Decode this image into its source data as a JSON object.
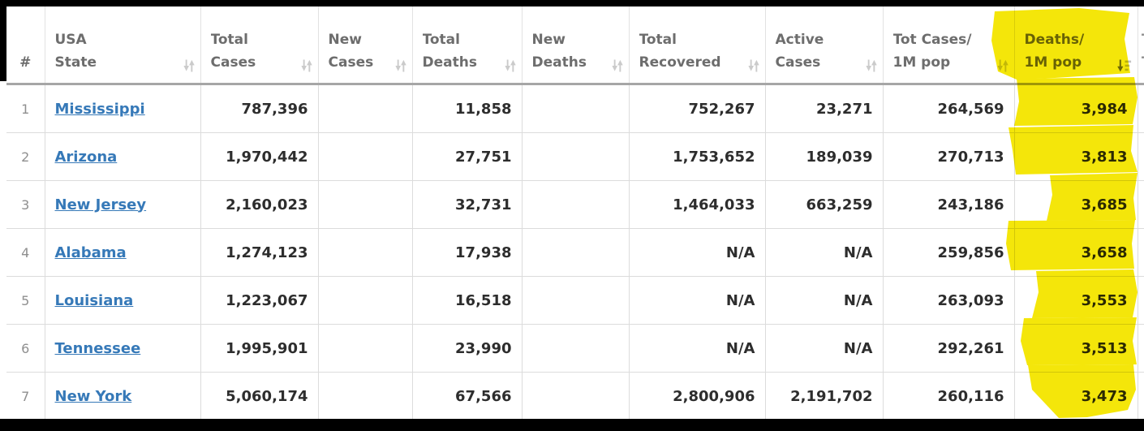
{
  "table": {
    "columns": [
      {
        "id": "rank",
        "line1": "",
        "line2": "#",
        "sort": "none",
        "align": "center",
        "sortable": false
      },
      {
        "id": "state",
        "line1": "USA",
        "line2": "State",
        "sort": "both",
        "align": "left",
        "sortable": true
      },
      {
        "id": "total_cases",
        "line1": "Total",
        "line2": "Cases",
        "sort": "both",
        "align": "right",
        "sortable": true
      },
      {
        "id": "new_cases",
        "line1": "New",
        "line2": "Cases",
        "sort": "both",
        "align": "right",
        "sortable": true
      },
      {
        "id": "total_deaths",
        "line1": "Total",
        "line2": "Deaths",
        "sort": "both",
        "align": "right",
        "sortable": true
      },
      {
        "id": "new_deaths",
        "line1": "New",
        "line2": "Deaths",
        "sort": "both",
        "align": "right",
        "sortable": true
      },
      {
        "id": "total_recovered",
        "line1": "Total",
        "line2": "Recovered",
        "sort": "both",
        "align": "right",
        "sortable": true
      },
      {
        "id": "active_cases",
        "line1": "Active",
        "line2": "Cases",
        "sort": "both",
        "align": "right",
        "sortable": true
      },
      {
        "id": "cases_per_1m",
        "line1": "Tot Cases/",
        "line2": "1M pop",
        "sort": "both",
        "align": "right",
        "sortable": true
      },
      {
        "id": "deaths_per_1m",
        "line1": "Deaths/",
        "line2": "1M pop",
        "sort": "desc-active",
        "align": "right",
        "sortable": true,
        "highlighted": true
      }
    ],
    "rows": [
      {
        "rank": "1",
        "state": "Mississippi",
        "total_cases": "787,396",
        "new_cases": "",
        "total_deaths": "11,858",
        "new_deaths": "",
        "total_recovered": "752,267",
        "active_cases": "23,271",
        "cases_per_1m": "264,569",
        "deaths_per_1m": "3,984"
      },
      {
        "rank": "2",
        "state": "Arizona",
        "total_cases": "1,970,442",
        "new_cases": "",
        "total_deaths": "27,751",
        "new_deaths": "",
        "total_recovered": "1,753,652",
        "active_cases": "189,039",
        "cases_per_1m": "270,713",
        "deaths_per_1m": "3,813"
      },
      {
        "rank": "3",
        "state": "New Jersey",
        "total_cases": "2,160,023",
        "new_cases": "",
        "total_deaths": "32,731",
        "new_deaths": "",
        "total_recovered": "1,464,033",
        "active_cases": "663,259",
        "cases_per_1m": "243,186",
        "deaths_per_1m": "3,685"
      },
      {
        "rank": "4",
        "state": "Alabama",
        "total_cases": "1,274,123",
        "new_cases": "",
        "total_deaths": "17,938",
        "new_deaths": "",
        "total_recovered": "N/A",
        "active_cases": "N/A",
        "cases_per_1m": "259,856",
        "deaths_per_1m": "3,658"
      },
      {
        "rank": "5",
        "state": "Louisiana",
        "total_cases": "1,223,067",
        "new_cases": "",
        "total_deaths": "16,518",
        "new_deaths": "",
        "total_recovered": "N/A",
        "active_cases": "N/A",
        "cases_per_1m": "263,093",
        "deaths_per_1m": "3,553"
      },
      {
        "rank": "6",
        "state": "Tennessee",
        "total_cases": "1,995,901",
        "new_cases": "",
        "total_deaths": "23,990",
        "new_deaths": "",
        "total_recovered": "N/A",
        "active_cases": "N/A",
        "cases_per_1m": "292,261",
        "deaths_per_1m": "3,513"
      },
      {
        "rank": "7",
        "state": "New York",
        "total_cases": "5,060,174",
        "new_cases": "",
        "total_deaths": "67,566",
        "new_deaths": "",
        "total_recovered": "2,800,906",
        "active_cases": "2,191,702",
        "cases_per_1m": "260,116",
        "deaths_per_1m": "3,473"
      }
    ],
    "sorted_column": "deaths_per_1m",
    "sort_direction": "descending",
    "next_column_fragment_line1": "T",
    "next_column_fragment_line2": "T"
  },
  "highlight": {
    "style": "hand-drawn-marker",
    "color": "#f4e60a",
    "column": "deaths_per_1m"
  },
  "colors": {
    "link_blue": "#3679b8",
    "header_text": "#6d6d6d",
    "number_text": "#2d2d2d",
    "sort_icon_inactive": "#cbcbcb",
    "sort_icon_active_arrow": "#707070",
    "sort_icon_active_bars": "#c3c3c3",
    "grid_border": "#dcdcdc",
    "header_border": "#a6a6a6",
    "frame_black": "#000000"
  }
}
